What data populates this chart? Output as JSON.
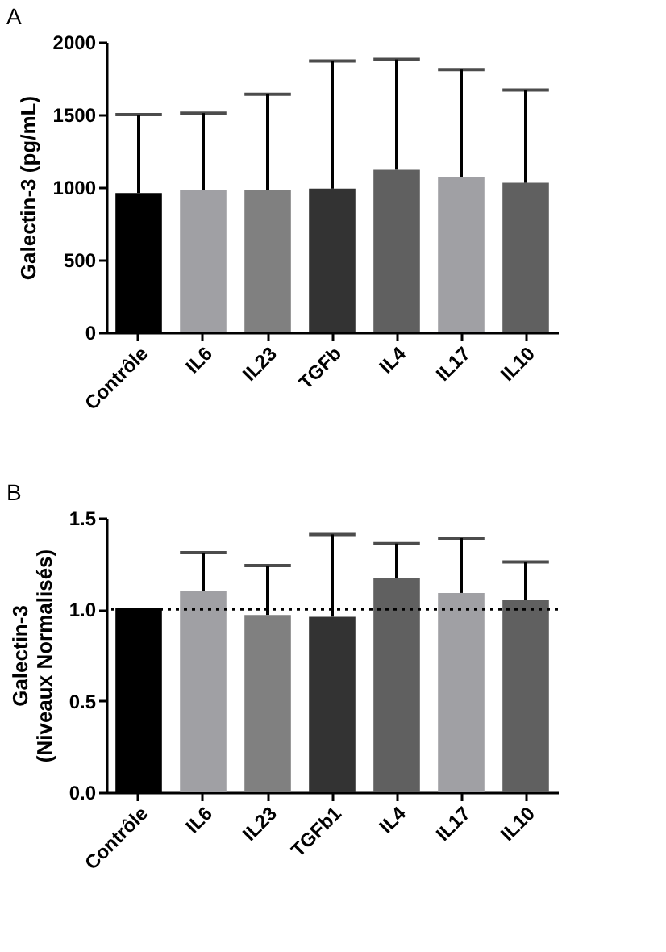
{
  "chart_data": [
    {
      "type": "bar",
      "annotations": [
        "A"
      ],
      "ylabel": "Galectin-3 (pg/mL)",
      "categories": [
        "Contrôle",
        "IL6",
        "IL23",
        "TGFb",
        "IL4",
        "IL17",
        "IL10"
      ],
      "values": [
        960,
        980,
        980,
        990,
        1120,
        1070,
        1030
      ],
      "colors": [
        "#000000",
        "#a0a0a4",
        "#808080",
        "#333333",
        "#606060",
        "#a0a0a4",
        "#606060"
      ],
      "errors": [
        [
          960,
          1500
        ],
        [
          980,
          1510
        ],
        [
          980,
          1640
        ],
        [
          990,
          1870
        ],
        [
          1120,
          1880
        ],
        [
          1070,
          1810
        ],
        [
          1030,
          1670
        ]
      ],
      "ylim": [
        0,
        2000
      ],
      "yticks": [
        0,
        500,
        1000,
        1500,
        2000
      ],
      "grid": false,
      "legend": false
    },
    {
      "type": "bar",
      "annotations": [
        "B"
      ],
      "ylabel": "Galectin-3\n(Niveaux Normalisés)",
      "categories": [
        "Contrôle",
        "IL6",
        "IL23",
        "TGFb1",
        "IL4",
        "IL17",
        "IL10"
      ],
      "values": [
        1.01,
        1.1,
        0.97,
        0.96,
        1.17,
        1.09,
        1.05
      ],
      "colors": [
        "#000000",
        "#a0a0a4",
        "#808080",
        "#333333",
        "#606060",
        "#a0a0a4",
        "#606060"
      ],
      "errors": [
        null,
        [
          1.1,
          1.31
        ],
        [
          0.97,
          1.24
        ],
        [
          0.96,
          1.41
        ],
        [
          1.17,
          1.36
        ],
        [
          1.09,
          1.39
        ],
        [
          1.05,
          1.26
        ]
      ],
      "ylim": [
        0,
        1.5
      ],
      "yticks": [
        {
          "value": 0,
          "label": "0.0"
        },
        {
          "value": 0.5,
          "label": "0.5"
        },
        {
          "value": 1,
          "label": "1.0"
        },
        {
          "value": 1.5,
          "label": "1.5"
        }
      ],
      "ref_lines": [
        {
          "axis": "y",
          "value": 1,
          "line_style": "dotted",
          "color": "#000000"
        }
      ],
      "grid": false,
      "legend": false
    }
  ]
}
